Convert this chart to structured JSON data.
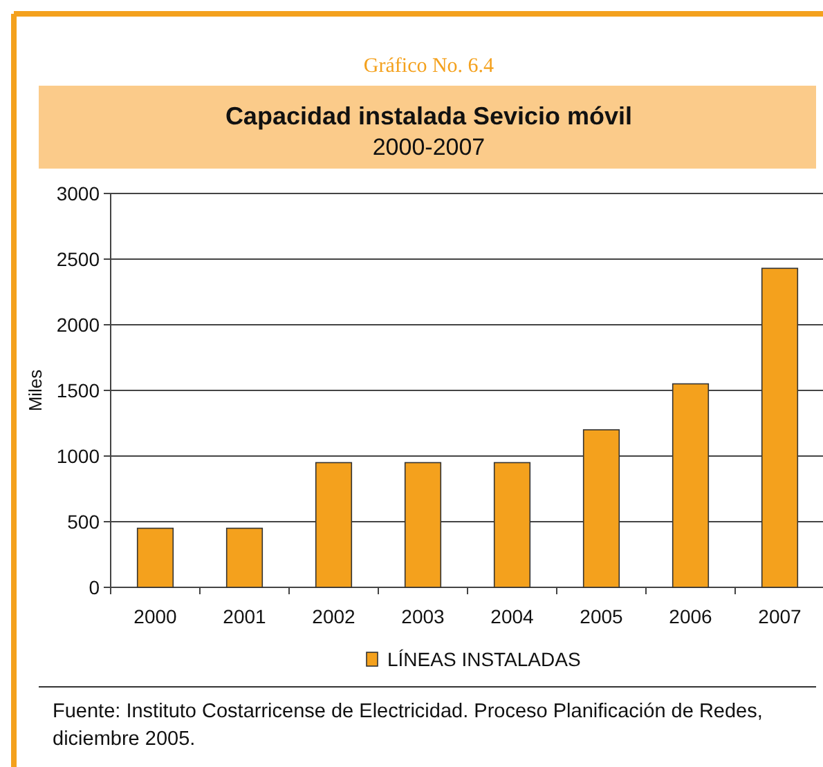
{
  "chart_data": {
    "type": "bar",
    "title": "Capacidad instalada Sevicio móvil",
    "subtitle": "2000-2007",
    "ylabel": "Miles",
    "annotations": [
      "Gráfico No. 6.4",
      "Fuente: Instituto Costarricense de Electricidad. Proceso Planificación de Redes, diciembre 2005."
    ],
    "categories": [
      "2000",
      "2001",
      "2002",
      "2003",
      "2004",
      "2005",
      "2006",
      "2007"
    ],
    "series": [
      {
        "name": "LÍNEAS INSTALADAS",
        "color": "#f4a11d",
        "values": [
          450,
          450,
          950,
          950,
          950,
          1200,
          1550,
          2430
        ]
      }
    ],
    "ylim": [
      0,
      3000
    ],
    "yticks": [
      0,
      500,
      1000,
      1500,
      2000,
      2500,
      3000
    ],
    "grid": "y",
    "legend": "bottom"
  }
}
